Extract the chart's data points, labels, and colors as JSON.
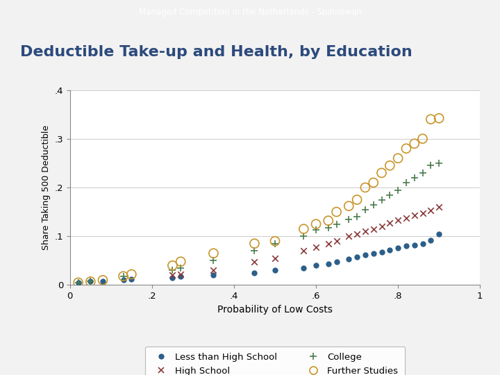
{
  "title_bar": "Managed Competition in the Netherlands - Spinnewijn",
  "title_bar_bg": "#6b7fa8",
  "title_bar_color": "#ffffff",
  "chart_title": "Deductible Take-up and Health, by Education",
  "xlabel": "Probability of Low Costs",
  "ylabel": "Share Taking 500 Deductible",
  "xlim": [
    0,
    1
  ],
  "ylim": [
    0,
    0.4
  ],
  "xticks": [
    0,
    0.2,
    0.4,
    0.6,
    0.8,
    1
  ],
  "xtick_labels": [
    "0",
    ".2",
    ".4",
    ".6",
    ".8",
    "1"
  ],
  "yticks": [
    0,
    0.1,
    0.2,
    0.3,
    0.4
  ],
  "ytick_labels": [
    "0",
    ".1",
    ".2",
    ".3",
    ".4"
  ],
  "series": {
    "less_than_hs": {
      "label": "Less than High School",
      "color": "#2c5f8a",
      "marker": "o",
      "markersize": 6,
      "x": [
        0.02,
        0.05,
        0.08,
        0.13,
        0.15,
        0.25,
        0.27,
        0.35,
        0.45,
        0.5,
        0.57,
        0.6,
        0.63,
        0.65,
        0.68,
        0.7,
        0.72,
        0.74,
        0.76,
        0.78,
        0.8,
        0.82,
        0.84,
        0.86,
        0.88,
        0.9
      ],
      "y": [
        0.005,
        0.007,
        0.008,
        0.01,
        0.012,
        0.015,
        0.018,
        0.02,
        0.025,
        0.03,
        0.035,
        0.04,
        0.043,
        0.047,
        0.053,
        0.057,
        0.062,
        0.065,
        0.068,
        0.072,
        0.076,
        0.08,
        0.082,
        0.085,
        0.092,
        0.105
      ]
    },
    "high_school": {
      "label": "High School",
      "color": "#8b3a3a",
      "marker": "x",
      "markersize": 5,
      "x": [
        0.25,
        0.27,
        0.35,
        0.45,
        0.5,
        0.57,
        0.6,
        0.63,
        0.65,
        0.68,
        0.7,
        0.72,
        0.74,
        0.76,
        0.78,
        0.8,
        0.82,
        0.84,
        0.86,
        0.88,
        0.9
      ],
      "y": [
        0.02,
        0.022,
        0.03,
        0.048,
        0.055,
        0.07,
        0.078,
        0.085,
        0.09,
        0.1,
        0.105,
        0.11,
        0.115,
        0.12,
        0.128,
        0.133,
        0.138,
        0.143,
        0.148,
        0.153,
        0.16
      ]
    },
    "college": {
      "label": "College",
      "color": "#4a7c4e",
      "marker": "+",
      "markersize": 6,
      "x": [
        0.02,
        0.05,
        0.13,
        0.25,
        0.27,
        0.35,
        0.45,
        0.5,
        0.57,
        0.6,
        0.63,
        0.65,
        0.68,
        0.7,
        0.72,
        0.74,
        0.76,
        0.78,
        0.8,
        0.82,
        0.84,
        0.86,
        0.88,
        0.9
      ],
      "y": [
        0.005,
        0.008,
        0.018,
        0.03,
        0.035,
        0.05,
        0.07,
        0.085,
        0.1,
        0.113,
        0.118,
        0.125,
        0.135,
        0.14,
        0.155,
        0.165,
        0.175,
        0.185,
        0.195,
        0.21,
        0.22,
        0.23,
        0.245,
        0.25
      ]
    },
    "further_studies": {
      "label": "Further Studies",
      "color": "#c8952a",
      "marker": "o",
      "markersize": 7,
      "x": [
        0.02,
        0.05,
        0.08,
        0.13,
        0.15,
        0.25,
        0.27,
        0.35,
        0.45,
        0.5,
        0.57,
        0.6,
        0.63,
        0.65,
        0.68,
        0.7,
        0.72,
        0.74,
        0.76,
        0.78,
        0.8,
        0.82,
        0.84,
        0.86,
        0.88,
        0.9
      ],
      "y": [
        0.005,
        0.007,
        0.01,
        0.018,
        0.022,
        0.04,
        0.048,
        0.065,
        0.085,
        0.09,
        0.115,
        0.125,
        0.132,
        0.15,
        0.162,
        0.175,
        0.2,
        0.21,
        0.23,
        0.245,
        0.26,
        0.28,
        0.29,
        0.3,
        0.34,
        0.342
      ]
    }
  },
  "fig_bg": "#f2f2f2",
  "plot_bg": "#ffffff"
}
